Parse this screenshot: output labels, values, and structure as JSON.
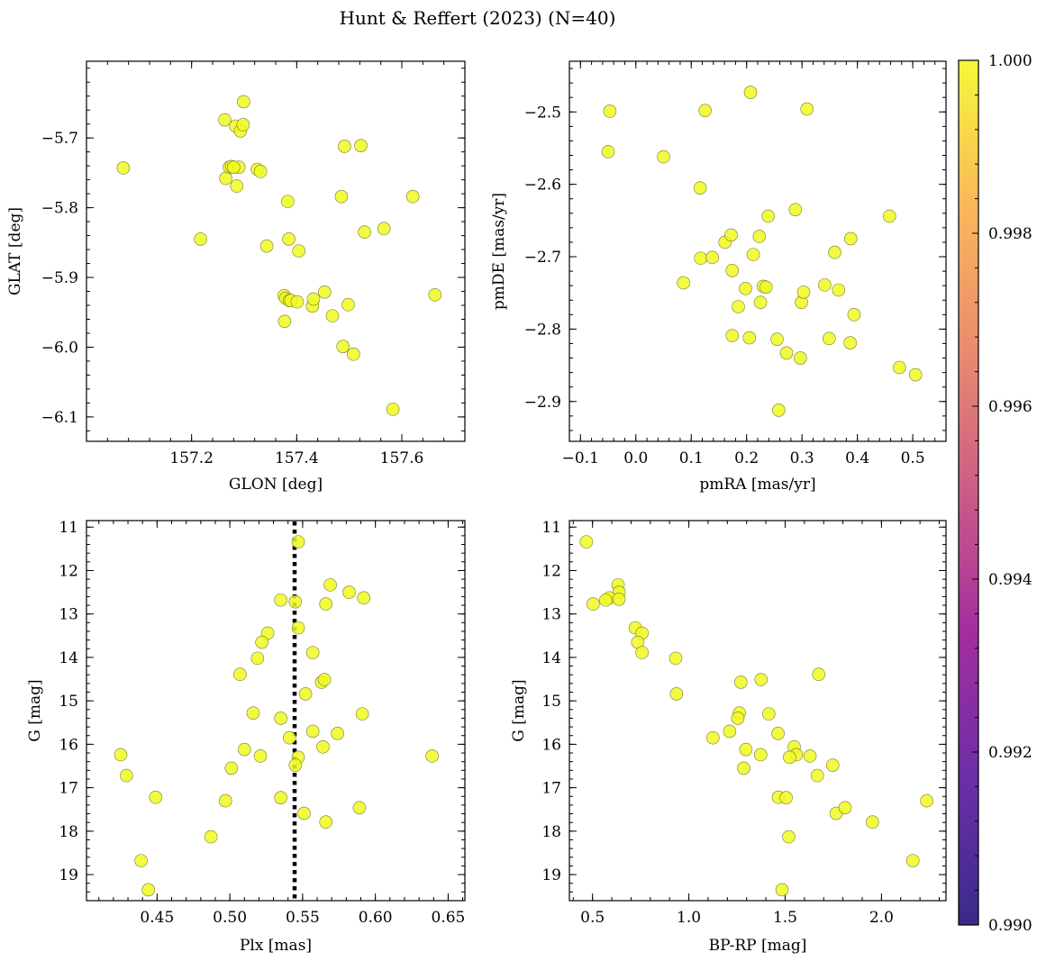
{
  "figure": {
    "title": "Hunt & Reffert (2023) (N=40)",
    "point_color": "#f0f921"
  },
  "colorbar": {
    "min": 0.99,
    "max": 1.0,
    "tick_values": [
      0.99,
      0.992,
      0.994,
      0.996,
      0.998,
      1.0
    ],
    "tick_labels": [
      "0.990",
      "0.992",
      "0.994",
      "0.996",
      "0.998",
      "1.000"
    ],
    "colormap": "plasma",
    "stops": [
      "#3b2a8a",
      "#6a2fa6",
      "#a12da0",
      "#cc5b86",
      "#e98c6e",
      "#fbb85a",
      "#f5f83a"
    ]
  },
  "chart_data": [
    {
      "type": "scatter",
      "xlabel": "GLON [deg]",
      "ylabel": "GLAT [deg]",
      "xlim": [
        157.0,
        157.72
      ],
      "ylim": [
        -6.135,
        -5.59
      ],
      "y_inverted": false,
      "xticks": [
        157.2,
        157.4,
        157.6
      ],
      "xtick_labels": [
        "157.2",
        "157.4",
        "157.6"
      ],
      "yticks": [
        -6.1,
        -6.0,
        -5.9,
        -5.8,
        -5.7
      ],
      "ytick_labels": [
        "−6.1",
        "−6.0",
        "−5.9",
        "−5.8",
        "−5.7"
      ],
      "x": [
        157.07,
        157.217,
        157.263,
        157.265,
        157.272,
        157.276,
        157.284,
        157.286,
        157.29,
        157.293,
        157.298,
        157.299,
        157.325,
        157.331,
        157.343,
        157.376,
        157.377,
        157.379,
        157.383,
        157.385,
        157.386,
        157.389,
        157.401,
        157.404,
        157.43,
        157.432,
        157.453,
        157.468,
        157.485,
        157.488,
        157.491,
        157.498,
        157.508,
        157.522,
        157.529,
        157.566,
        157.583,
        157.621,
        157.663,
        157.28
      ],
      "y": [
        -5.743,
        -5.845,
        -5.674,
        -5.758,
        -5.742,
        -5.741,
        -5.683,
        -5.769,
        -5.742,
        -5.69,
        -5.681,
        -5.648,
        -5.745,
        -5.748,
        -5.855,
        -5.926,
        -5.963,
        -5.93,
        -5.791,
        -5.845,
        -5.933,
        -5.933,
        -5.935,
        -5.862,
        -5.941,
        -5.931,
        -5.921,
        -5.955,
        -5.784,
        -5.999,
        -5.712,
        -5.939,
        -6.01,
        -5.711,
        -5.835,
        -5.83,
        -6.089,
        -5.784,
        -5.925,
        -5.742
      ]
    },
    {
      "type": "scatter",
      "xlabel": "pmRA [mas/yr]",
      "ylabel": "pmDE [mas/yr]",
      "xlim": [
        -0.12,
        0.56
      ],
      "ylim": [
        -2.955,
        -2.43
      ],
      "y_inverted": false,
      "xticks": [
        -0.1,
        0.0,
        0.1,
        0.2,
        0.3,
        0.4,
        0.5
      ],
      "xtick_labels": [
        "−0.1",
        "0.0",
        "0.1",
        "0.2",
        "0.3",
        "0.4",
        "0.5"
      ],
      "yticks": [
        -2.9,
        -2.8,
        -2.7,
        -2.6,
        -2.5
      ],
      "ytick_labels": [
        "−2.9",
        "−2.8",
        "−2.7",
        "−2.6",
        "−2.5"
      ],
      "x": [
        -0.047,
        -0.05,
        0.05,
        0.116,
        0.125,
        0.207,
        0.309,
        0.117,
        0.138,
        0.086,
        0.161,
        0.172,
        0.174,
        0.185,
        0.198,
        0.205,
        0.212,
        0.223,
        0.225,
        0.23,
        0.235,
        0.239,
        0.255,
        0.258,
        0.272,
        0.288,
        0.297,
        0.299,
        0.303,
        0.341,
        0.349,
        0.359,
        0.366,
        0.387,
        0.388,
        0.394,
        0.458,
        0.476,
        0.505,
        0.174
      ],
      "y": [
        -2.499,
        -2.555,
        -2.562,
        -2.605,
        -2.498,
        -2.473,
        -2.496,
        -2.702,
        -2.701,
        -2.736,
        -2.68,
        -2.67,
        -2.809,
        -2.769,
        -2.744,
        -2.812,
        -2.697,
        -2.672,
        -2.763,
        -2.741,
        -2.742,
        -2.644,
        -2.814,
        -2.912,
        -2.833,
        -2.635,
        -2.84,
        -2.763,
        -2.749,
        -2.739,
        -2.813,
        -2.694,
        -2.746,
        -2.819,
        -2.675,
        -2.78,
        -2.644,
        -2.853,
        -2.863,
        -2.719
      ]
    },
    {
      "type": "scatter",
      "xlabel": "Plx [mas]",
      "ylabel": "G [mag]",
      "xlim": [
        0.4015,
        0.6615
      ],
      "ylim": [
        10.85,
        19.6
      ],
      "y_inverted": true,
      "vline": 0.5445,
      "vline_style": "dotted",
      "xticks": [
        0.45,
        0.5,
        0.55,
        0.6,
        0.65
      ],
      "xtick_labels": [
        "0.45",
        "0.50",
        "0.55",
        "0.60",
        "0.65"
      ],
      "yticks": [
        11,
        12,
        13,
        14,
        15,
        16,
        17,
        18,
        19
      ],
      "ytick_labels": [
        "11",
        "12",
        "13",
        "14",
        "15",
        "16",
        "17",
        "18",
        "19"
      ],
      "x": [
        0.547,
        0.569,
        0.582,
        0.592,
        0.535,
        0.545,
        0.566,
        0.547,
        0.526,
        0.522,
        0.519,
        0.557,
        0.507,
        0.563,
        0.565,
        0.552,
        0.516,
        0.591,
        0.535,
        0.557,
        0.574,
        0.541,
        0.564,
        0.51,
        0.521,
        0.425,
        0.547,
        0.639,
        0.545,
        0.501,
        0.429,
        0.449,
        0.535,
        0.497,
        0.589,
        0.551,
        0.566,
        0.487,
        0.439,
        0.444
      ],
      "y": [
        11.34,
        12.33,
        12.5,
        12.63,
        12.68,
        12.72,
        12.77,
        13.32,
        13.44,
        13.65,
        14.02,
        13.89,
        14.39,
        14.57,
        14.51,
        14.84,
        15.28,
        15.3,
        15.4,
        15.7,
        15.75,
        15.85,
        16.06,
        16.12,
        16.27,
        16.24,
        16.3,
        16.27,
        16.48,
        16.55,
        16.72,
        17.22,
        17.23,
        17.3,
        17.46,
        17.59,
        17.79,
        18.13,
        18.68,
        19.35
      ]
    },
    {
      "type": "scatter",
      "xlabel": "BP-RP [mag]",
      "ylabel": "G [mag]",
      "xlim": [
        0.38,
        2.335
      ],
      "ylim": [
        10.85,
        19.6
      ],
      "y_inverted": true,
      "xticks": [
        0.5,
        1.0,
        1.5,
        2.0
      ],
      "xtick_labels": [
        "0.5",
        "1.0",
        "1.5",
        "2.0"
      ],
      "yticks": [
        11,
        12,
        13,
        14,
        15,
        16,
        17,
        18,
        19
      ],
      "ytick_labels": [
        "11",
        "12",
        "13",
        "14",
        "15",
        "16",
        "17",
        "18",
        "19"
      ],
      "x": [
        0.468,
        0.633,
        0.638,
        0.588,
        0.569,
        0.503,
        0.637,
        0.722,
        0.757,
        0.735,
        0.757,
        0.932,
        0.936,
        1.27,
        1.375,
        1.674,
        1.415,
        1.262,
        1.254,
        1.212,
        1.125,
        1.463,
        1.547,
        1.373,
        1.296,
        1.558,
        1.523,
        1.629,
        1.285,
        1.747,
        1.667,
        1.465,
        1.505,
        2.235,
        1.765,
        1.811,
        1.953,
        1.519,
        2.163,
        1.484
      ],
      "y": [
        11.34,
        12.33,
        12.5,
        12.63,
        12.68,
        12.77,
        12.66,
        13.32,
        13.44,
        13.65,
        13.89,
        14.02,
        14.84,
        14.57,
        14.51,
        14.39,
        15.3,
        15.28,
        15.4,
        15.7,
        15.85,
        15.75,
        16.06,
        16.24,
        16.12,
        16.24,
        16.3,
        16.27,
        16.55,
        16.48,
        16.72,
        17.22,
        17.23,
        17.3,
        17.59,
        17.46,
        17.79,
        18.13,
        18.68,
        19.35
      ]
    }
  ]
}
